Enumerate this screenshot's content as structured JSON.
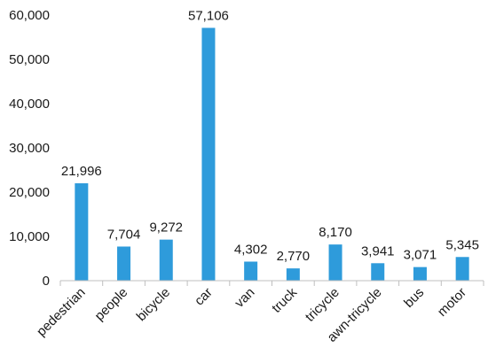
{
  "chart_data": {
    "type": "bar",
    "title": "",
    "xlabel": "",
    "ylabel": "",
    "categories": [
      "pedestrian",
      "people",
      "bicycle",
      "car",
      "van",
      "truck",
      "tricycle",
      "awn-tricycle",
      "bus",
      "motor"
    ],
    "values": [
      21996,
      7704,
      9272,
      57106,
      4302,
      2770,
      8170,
      3941,
      3071,
      5345
    ],
    "value_labels": [
      "21,996",
      "7,704",
      "9,272",
      "57,106",
      "4,302",
      "2,770",
      "8,170",
      "3,941",
      "3,071",
      "5,345"
    ],
    "ylim": [
      0,
      60000
    ],
    "yticks": [
      0,
      10000,
      20000,
      30000,
      40000,
      50000,
      60000
    ],
    "ytick_labels": [
      "0",
      "10,000",
      "20,000",
      "30,000",
      "40,000",
      "50,000",
      "60,000"
    ],
    "grid": false,
    "legend": "none",
    "bar_color": "#2E9BDB",
    "axis_color": "#BFBFBF"
  }
}
